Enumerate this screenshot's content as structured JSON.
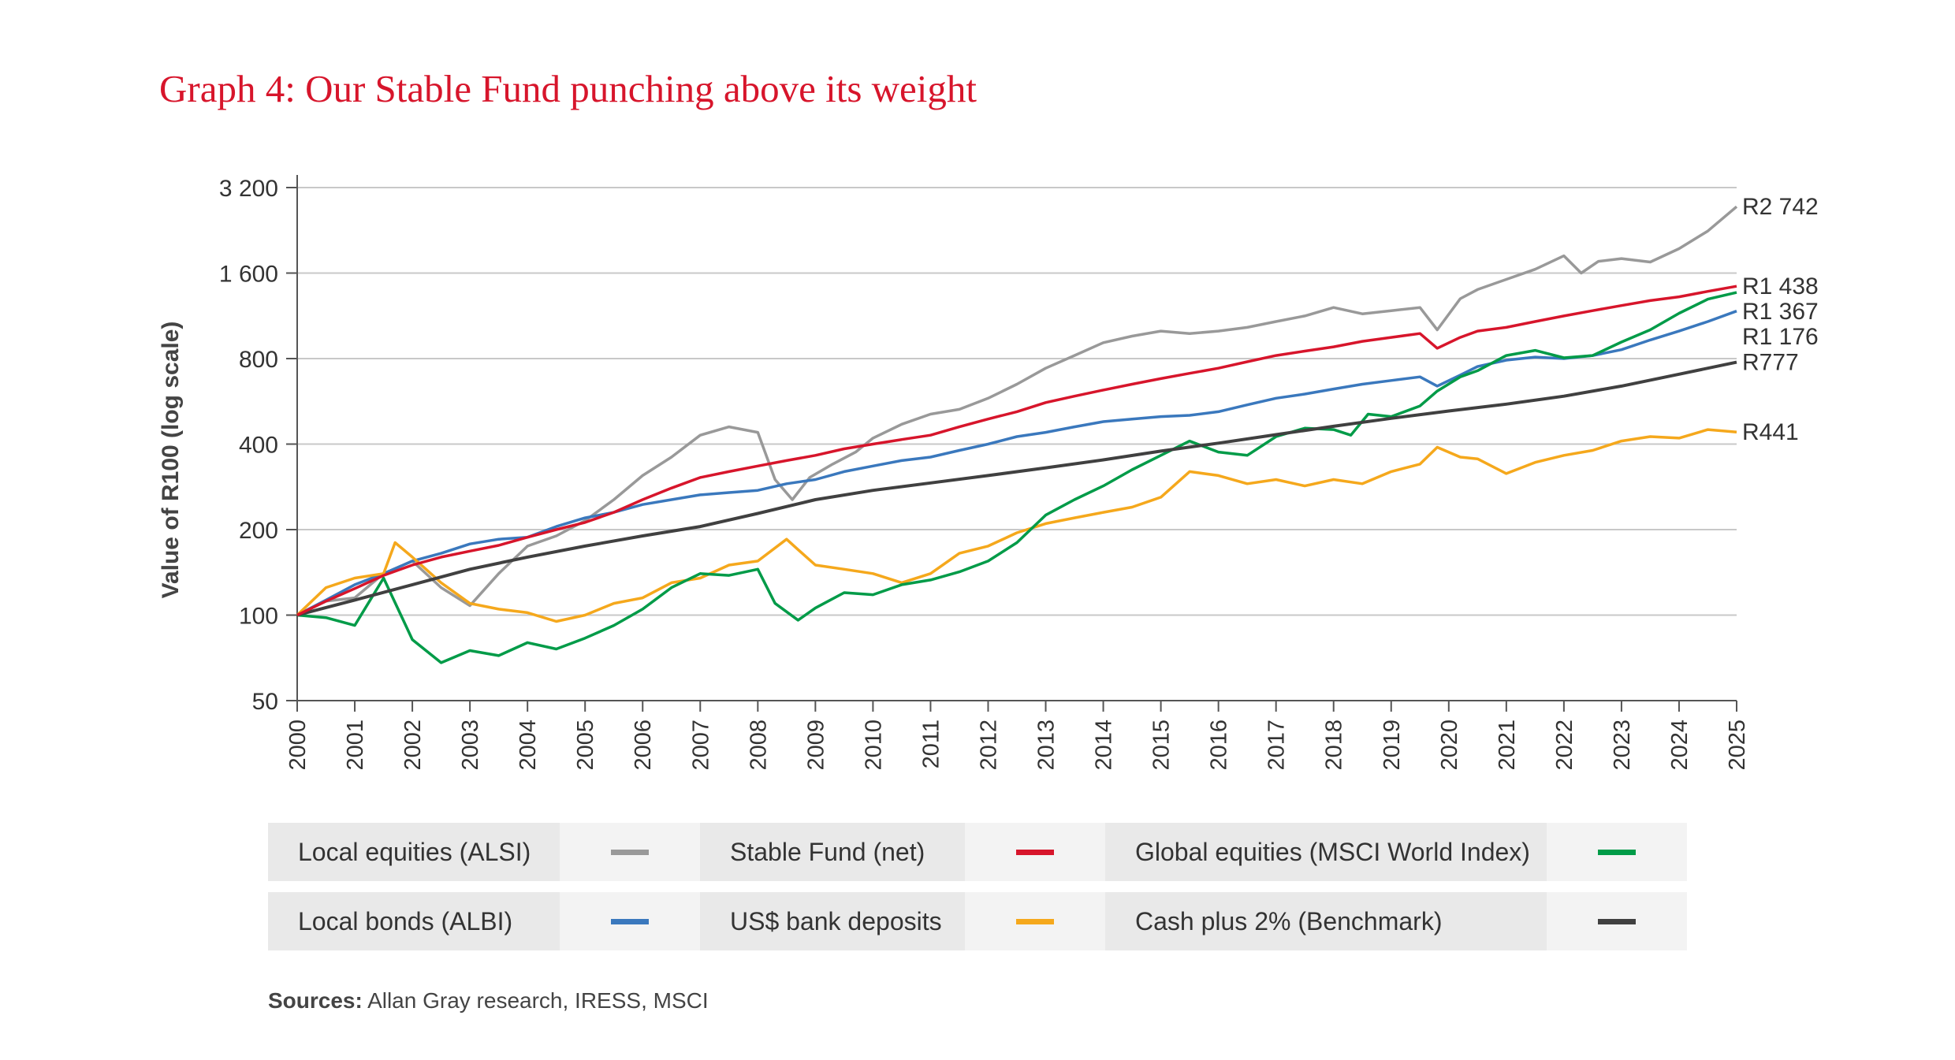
{
  "title": "Graph 4: Our Stable Fund punching above its weight",
  "sources": {
    "label": "Sources:",
    "text": " Allan Gray research, IRESS, MSCI"
  },
  "colors": {
    "title": "#d7152b",
    "grid": "#c8c8c8",
    "axis": "#555555"
  },
  "chart_data": {
    "type": "line",
    "title": "Graph 4: Our Stable Fund punching above its weight",
    "ylabel": "Value of R100 (log scale)",
    "xlabel": "",
    "yscale": "log2",
    "ylim": [
      50,
      3200
    ],
    "xlim": [
      2000,
      2025
    ],
    "grid": true,
    "yticks": [
      50,
      100,
      200,
      400,
      800,
      1600,
      3200
    ],
    "ytick_labels": [
      "50",
      "100",
      "200",
      "400",
      "800",
      "1 600",
      "3 200"
    ],
    "xticks": [
      "2000",
      "2001",
      "2002",
      "2003",
      "2004",
      "2005",
      "2006",
      "2007",
      "2008",
      "2009",
      "2010",
      "2011",
      "2012",
      "2013",
      "2014",
      "2015",
      "2016",
      "2017",
      "2018",
      "2019",
      "2020",
      "2021",
      "2022",
      "2023",
      "2024",
      "2025"
    ],
    "end_labels": [
      {
        "series": "Local equities (ALSI)",
        "label": "R2 742",
        "value": 2742
      },
      {
        "series": "Stable Fund (net)",
        "label": "R1 438",
        "value": 1438
      },
      {
        "series": "Global equities (MSCI World Index)",
        "label": "R1 367",
        "value": 1367
      },
      {
        "series": "Local bonds (ALBI)",
        "label": "R1 176",
        "value": 1176
      },
      {
        "series": "Cash plus 2% (Benchmark)",
        "label": "R777",
        "value": 777
      },
      {
        "series": "US$ bank deposits",
        "label": "R441",
        "value": 441
      }
    ],
    "series": [
      {
        "name": "Local equities (ALSI)",
        "color": "#999999",
        "x": [
          2000,
          2000.5,
          2001,
          2001.5,
          2002,
          2002.5,
          2003,
          2003.5,
          2004,
          2004.5,
          2005,
          2005.5,
          2006,
          2006.5,
          2007,
          2007.5,
          2008,
          2008.3,
          2008.6,
          2008.9,
          2009.3,
          2009.7,
          2010,
          2010.5,
          2011,
          2011.5,
          2012,
          2012.5,
          2013,
          2013.5,
          2014,
          2014.5,
          2015,
          2015.5,
          2016,
          2016.5,
          2017,
          2017.5,
          2018,
          2018.5,
          2019,
          2019.5,
          2019.8,
          2020.2,
          2020.5,
          2021,
          2021.5,
          2022,
          2022.3,
          2022.6,
          2023,
          2023.5,
          2024,
          2024.5,
          2025
        ],
        "y": [
          100,
          112,
          115,
          140,
          155,
          125,
          108,
          140,
          175,
          190,
          215,
          255,
          310,
          360,
          430,
          460,
          440,
          300,
          255,
          305,
          340,
          375,
          420,
          470,
          510,
          530,
          580,
          650,
          740,
          820,
          910,
          960,
          1000,
          980,
          1000,
          1030,
          1080,
          1130,
          1210,
          1150,
          1180,
          1210,
          1010,
          1300,
          1400,
          1520,
          1650,
          1840,
          1600,
          1760,
          1800,
          1750,
          1950,
          2250,
          2742
        ]
      },
      {
        "name": "Stable Fund (net)",
        "color": "#d7152b",
        "x": [
          2000,
          2000.5,
          2001,
          2001.5,
          2002,
          2002.5,
          2003,
          2003.5,
          2004,
          2004.5,
          2005,
          2005.5,
          2006,
          2006.5,
          2007,
          2007.5,
          2008,
          2008.5,
          2009,
          2009.5,
          2010,
          2010.5,
          2011,
          2011.5,
          2012,
          2012.5,
          2013,
          2013.5,
          2014,
          2014.5,
          2015,
          2015.5,
          2016,
          2016.5,
          2017,
          2017.5,
          2018,
          2018.5,
          2019,
          2019.5,
          2019.8,
          2020.2,
          2020.5,
          2021,
          2021.5,
          2022,
          2022.5,
          2023,
          2023.5,
          2024,
          2024.5,
          2025
        ],
        "y": [
          100,
          112,
          124,
          138,
          150,
          160,
          168,
          176,
          188,
          200,
          212,
          230,
          255,
          280,
          305,
          320,
          335,
          350,
          365,
          385,
          400,
          415,
          430,
          460,
          490,
          520,
          560,
          590,
          620,
          650,
          680,
          710,
          740,
          780,
          820,
          850,
          880,
          920,
          950,
          980,
          870,
          950,
          1000,
          1030,
          1080,
          1130,
          1180,
          1230,
          1280,
          1320,
          1380,
          1438
        ]
      },
      {
        "name": "Global equities (MSCI World Index)",
        "color": "#009b48",
        "x": [
          2000,
          2000.5,
          2001,
          2001.5,
          2002,
          2002.5,
          2003,
          2003.5,
          2004,
          2004.5,
          2005,
          2005.5,
          2006,
          2006.5,
          2007,
          2007.5,
          2008,
          2008.3,
          2008.7,
          2009,
          2009.5,
          2010,
          2010.5,
          2011,
          2011.5,
          2012,
          2012.5,
          2013,
          2013.5,
          2014,
          2014.5,
          2015,
          2015.5,
          2016,
          2016.5,
          2017,
          2017.5,
          2018,
          2018.3,
          2018.6,
          2019,
          2019.5,
          2019.8,
          2020.2,
          2020.5,
          2021,
          2021.5,
          2022,
          2022.5,
          2023,
          2023.5,
          2024,
          2024.5,
          2025
        ],
        "y": [
          100,
          98,
          92,
          135,
          82,
          68,
          75,
          72,
          80,
          76,
          83,
          92,
          105,
          125,
          140,
          138,
          145,
          110,
          96,
          106,
          120,
          118,
          128,
          133,
          142,
          155,
          180,
          225,
          255,
          285,
          325,
          365,
          410,
          375,
          365,
          425,
          455,
          450,
          430,
          510,
          500,
          545,
          615,
          690,
          725,
          820,
          855,
          805,
          820,
          915,
          1010,
          1155,
          1295,
          1367
        ]
      },
      {
        "name": "Local bonds (ALBI)",
        "color": "#3a78bd",
        "x": [
          2000,
          2000.5,
          2001,
          2001.5,
          2002,
          2002.5,
          2003,
          2003.5,
          2004,
          2004.5,
          2005,
          2005.5,
          2006,
          2006.5,
          2007,
          2007.5,
          2008,
          2008.5,
          2009,
          2009.5,
          2010,
          2010.5,
          2011,
          2011.5,
          2012,
          2012.5,
          2013,
          2013.5,
          2014,
          2014.5,
          2015,
          2015.5,
          2016,
          2016.5,
          2017,
          2017.5,
          2018,
          2018.5,
          2019,
          2019.5,
          2019.8,
          2020.2,
          2020.5,
          2021,
          2021.5,
          2022,
          2022.5,
          2023,
          2023.5,
          2024,
          2024.5,
          2025
        ],
        "y": [
          100,
          113,
          128,
          140,
          155,
          165,
          178,
          185,
          188,
          205,
          220,
          230,
          245,
          255,
          265,
          270,
          275,
          290,
          300,
          320,
          335,
          350,
          360,
          380,
          400,
          425,
          440,
          460,
          480,
          490,
          500,
          505,
          520,
          550,
          580,
          600,
          625,
          650,
          670,
          690,
          640,
          700,
          750,
          790,
          810,
          800,
          820,
          860,
          930,
          1000,
          1080,
          1176
        ]
      },
      {
        "name": "US$ bank deposits",
        "color": "#f5a81c",
        "x": [
          2000,
          2000.5,
          2001,
          2001.5,
          2001.7,
          2002,
          2002.5,
          2003,
          2003.5,
          2004,
          2004.5,
          2005,
          2005.5,
          2006,
          2006.5,
          2007,
          2007.5,
          2008,
          2008.5,
          2008.7,
          2009,
          2009.5,
          2010,
          2010.5,
          2011,
          2011.5,
          2012,
          2012.5,
          2013,
          2013.5,
          2014,
          2014.5,
          2015,
          2015.5,
          2016,
          2016.5,
          2017,
          2017.5,
          2018,
          2018.5,
          2019,
          2019.5,
          2019.8,
          2020.2,
          2020.5,
          2021,
          2021.5,
          2022,
          2022.5,
          2023,
          2023.5,
          2024,
          2024.5,
          2025
        ],
        "y": [
          100,
          125,
          135,
          140,
          180,
          160,
          130,
          110,
          105,
          102,
          95,
          100,
          110,
          115,
          130,
          135,
          150,
          155,
          185,
          170,
          150,
          145,
          140,
          130,
          140,
          165,
          175,
          195,
          210,
          220,
          230,
          240,
          260,
          320,
          310,
          290,
          300,
          285,
          300,
          290,
          320,
          340,
          390,
          360,
          355,
          315,
          345,
          365,
          380,
          410,
          425,
          420,
          450,
          441
        ]
      },
      {
        "name": "Cash plus 2% (Benchmark)",
        "color": "#404040",
        "x": [
          2000,
          2001,
          2002,
          2003,
          2004,
          2005,
          2006,
          2007,
          2008,
          2009,
          2010,
          2011,
          2012,
          2013,
          2014,
          2015,
          2016,
          2017,
          2018,
          2019,
          2020,
          2021,
          2022,
          2023,
          2024,
          2025
        ],
        "y": [
          100,
          113,
          128,
          145,
          160,
          175,
          190,
          205,
          228,
          255,
          275,
          292,
          310,
          330,
          352,
          378,
          403,
          432,
          462,
          493,
          523,
          553,
          590,
          640,
          705,
          777
        ]
      }
    ]
  },
  "legend": {
    "rows": [
      [
        {
          "label": "Local equities (ALSI)",
          "color": "#999999"
        },
        {
          "label": "Stable Fund (net)",
          "color": "#d7152b"
        },
        {
          "label": "Global equities (MSCI World Index)",
          "color": "#009b48"
        }
      ],
      [
        {
          "label": "Local bonds (ALBI)",
          "color": "#3a78bd"
        },
        {
          "label": "US$ bank deposits",
          "color": "#f5a81c"
        },
        {
          "label": "Cash plus 2% (Benchmark)",
          "color": "#404040"
        }
      ]
    ]
  }
}
